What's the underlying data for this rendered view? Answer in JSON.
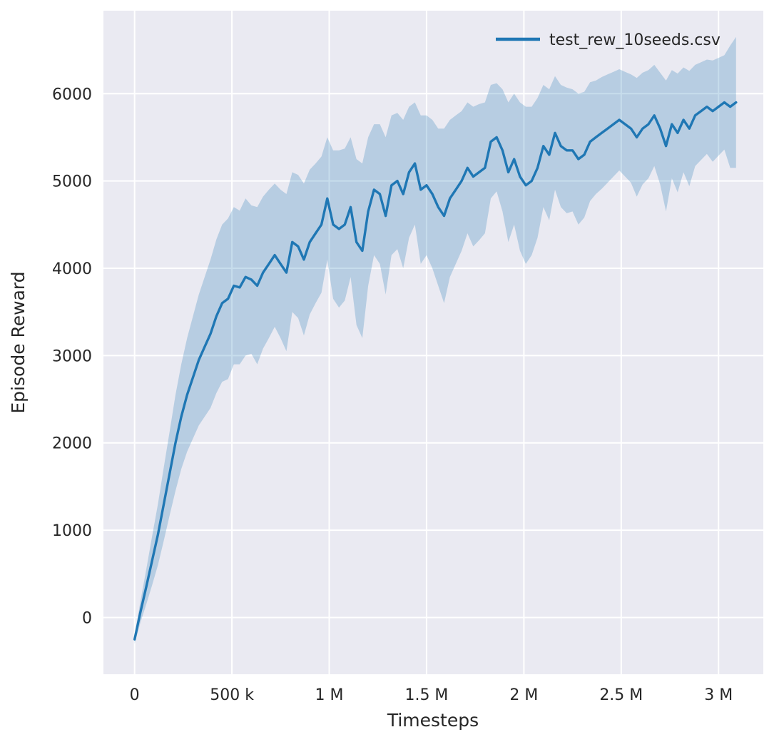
{
  "chart_data": {
    "type": "line",
    "title": "",
    "xlabel": "Timesteps",
    "ylabel": "Episode Reward",
    "grid": true,
    "legend_position": "upper right",
    "background_color": "#eaeaf2",
    "grid_color": "#ffffff",
    "text_color": "#262626",
    "xlim": [
      -160000,
      3230000
    ],
    "ylim": [
      -650,
      6950
    ],
    "xticks": {
      "values": [
        0,
        500000,
        1000000,
        1500000,
        2000000,
        2500000,
        3000000
      ],
      "labels": [
        "0",
        "500 k",
        "1 M",
        "1.5 M",
        "2 M",
        "2.5 M",
        "3 M"
      ]
    },
    "yticks": {
      "values": [
        0,
        1000,
        2000,
        3000,
        4000,
        5000,
        6000
      ],
      "labels": [
        "0",
        "1000",
        "2000",
        "3000",
        "4000",
        "5000",
        "6000"
      ]
    },
    "series": [
      {
        "name": "test_rew_10seeds.csv",
        "color": "#1f77b4",
        "band_opacity": 0.25,
        "x": [
          0,
          30000,
          60000,
          90000,
          120000,
          150000,
          180000,
          210000,
          240000,
          270000,
          300000,
          330000,
          360000,
          390000,
          420000,
          450000,
          480000,
          510000,
          540000,
          570000,
          600000,
          630000,
          660000,
          690000,
          720000,
          750000,
          780000,
          810000,
          840000,
          870000,
          900000,
          930000,
          960000,
          990000,
          1020000,
          1050000,
          1080000,
          1110000,
          1140000,
          1170000,
          1200000,
          1230000,
          1260000,
          1290000,
          1320000,
          1350000,
          1380000,
          1410000,
          1440000,
          1470000,
          1500000,
          1530000,
          1560000,
          1590000,
          1620000,
          1650000,
          1680000,
          1710000,
          1740000,
          1770000,
          1800000,
          1830000,
          1860000,
          1890000,
          1920000,
          1950000,
          1980000,
          2010000,
          2040000,
          2070000,
          2100000,
          2130000,
          2160000,
          2190000,
          2220000,
          2250000,
          2280000,
          2310000,
          2340000,
          2370000,
          2400000,
          2430000,
          2460000,
          2490000,
          2520000,
          2550000,
          2580000,
          2610000,
          2640000,
          2670000,
          2700000,
          2730000,
          2760000,
          2790000,
          2820000,
          2850000,
          2880000,
          2910000,
          2940000,
          2970000,
          3000000,
          3030000,
          3060000,
          3090000
        ],
        "mean": [
          -250,
          60,
          350,
          650,
          950,
          1300,
          1650,
          2000,
          2300,
          2550,
          2750,
          2950,
          3100,
          3250,
          3450,
          3600,
          3650,
          3800,
          3780,
          3900,
          3870,
          3800,
          3950,
          4050,
          4150,
          4050,
          3950,
          4300,
          4250,
          4100,
          4300,
          4400,
          4500,
          4800,
          4500,
          4450,
          4500,
          4700,
          4300,
          4200,
          4650,
          4900,
          4850,
          4600,
          4950,
          5000,
          4850,
          5100,
          5200,
          4900,
          4950,
          4850,
          4700,
          4600,
          4800,
          4900,
          5000,
          5150,
          5050,
          5100,
          5150,
          5450,
          5500,
          5350,
          5100,
          5250,
          5050,
          4950,
          5000,
          5150,
          5400,
          5300,
          5550,
          5400,
          5350,
          5350,
          5250,
          5300,
          5450,
          5500,
          5550,
          5600,
          5650,
          5700,
          5650,
          5600,
          5500,
          5600,
          5650,
          5750,
          5600,
          5400,
          5650,
          5550,
          5700,
          5600,
          5750,
          5800,
          5850,
          5800,
          5850,
          5900,
          5850,
          5900
        ],
        "band_halfwidth": [
          50,
          120,
          200,
          280,
          350,
          420,
          480,
          550,
          600,
          650,
          700,
          750,
          800,
          850,
          880,
          900,
          920,
          900,
          880,
          900,
          850,
          900,
          870,
          850,
          820,
          850,
          900,
          800,
          820,
          870,
          830,
          800,
          780,
          700,
          850,
          900,
          870,
          800,
          950,
          1000,
          850,
          750,
          800,
          900,
          800,
          780,
          850,
          750,
          700,
          850,
          800,
          850,
          900,
          1000,
          900,
          850,
          800,
          750,
          800,
          780,
          750,
          650,
          620,
          700,
          800,
          750,
          850,
          900,
          850,
          800,
          700,
          750,
          650,
          700,
          720,
          700,
          750,
          720,
          680,
          650,
          640,
          620,
          600,
          580,
          600,
          620,
          680,
          640,
          620,
          580,
          640,
          750,
          620,
          680,
          600,
          660,
          580,
          560,
          540,
          580,
          560,
          540,
          700,
          750
        ]
      }
    ]
  }
}
